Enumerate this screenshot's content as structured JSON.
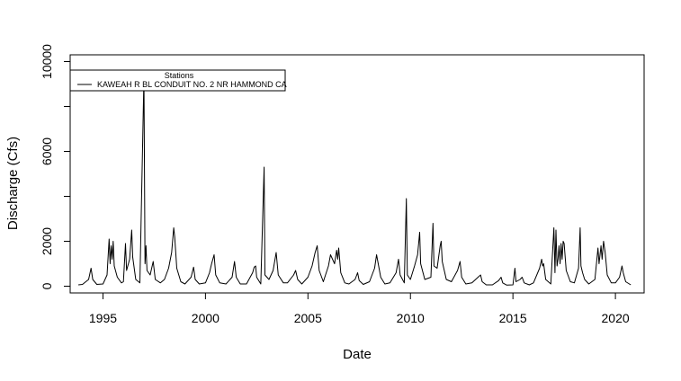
{
  "chart_data": {
    "type": "line",
    "title": "",
    "xlabel": "Date",
    "ylabel": "Discharge (Cfs)",
    "xlim": [
      1993.4,
      2021.4
    ],
    "ylim": [
      -300,
      10300
    ],
    "x_ticks": [
      1995,
      2000,
      2005,
      2010,
      2015,
      2020
    ],
    "x_tick_labels": [
      "1995",
      "2000",
      "2005",
      "2010",
      "2015",
      "2020"
    ],
    "y_ticks": [
      0,
      2000,
      6000,
      10000
    ],
    "y_tick_labels": [
      "0",
      "2000",
      "6000",
      "10000"
    ],
    "y_minor_ticks": [
      4000,
      8000
    ],
    "grid": false,
    "legend": {
      "title": "Stations",
      "position": "top-left",
      "entries": [
        "KAWEAH R BL CONDUIT NO. 2 NR HAMMOND CA"
      ]
    },
    "series": [
      {
        "name": "KAWEAH R BL CONDUIT NO. 2 NR HAMMOND CA",
        "color": "#000000",
        "points": [
          [
            1993.8,
            60
          ],
          [
            1994.0,
            80
          ],
          [
            1994.3,
            300
          ],
          [
            1994.42,
            800
          ],
          [
            1994.5,
            300
          ],
          [
            1994.7,
            80
          ],
          [
            1995.0,
            100
          ],
          [
            1995.2,
            500
          ],
          [
            1995.3,
            2100
          ],
          [
            1995.35,
            1000
          ],
          [
            1995.4,
            1800
          ],
          [
            1995.45,
            1200
          ],
          [
            1995.5,
            2000
          ],
          [
            1995.55,
            900
          ],
          [
            1995.7,
            400
          ],
          [
            1995.9,
            150
          ],
          [
            1996.0,
            200
          ],
          [
            1996.1,
            1900
          ],
          [
            1996.15,
            700
          ],
          [
            1996.3,
            1200
          ],
          [
            1996.4,
            2500
          ],
          [
            1996.45,
            1300
          ],
          [
            1996.6,
            300
          ],
          [
            1996.8,
            150
          ],
          [
            1997.0,
            9300
          ],
          [
            1997.05,
            1000
          ],
          [
            1997.1,
            1800
          ],
          [
            1997.15,
            700
          ],
          [
            1997.3,
            500
          ],
          [
            1997.45,
            1100
          ],
          [
            1997.55,
            300
          ],
          [
            1997.8,
            150
          ],
          [
            1998.0,
            300
          ],
          [
            1998.2,
            800
          ],
          [
            1998.35,
            1500
          ],
          [
            1998.45,
            2600
          ],
          [
            1998.5,
            2200
          ],
          [
            1998.6,
            800
          ],
          [
            1998.8,
            200
          ],
          [
            1999.0,
            100
          ],
          [
            1999.3,
            400
          ],
          [
            1999.42,
            850
          ],
          [
            1999.5,
            300
          ],
          [
            1999.7,
            100
          ],
          [
            2000.0,
            150
          ],
          [
            2000.2,
            600
          ],
          [
            2000.3,
            1000
          ],
          [
            2000.42,
            1400
          ],
          [
            2000.5,
            500
          ],
          [
            2000.7,
            150
          ],
          [
            2001.0,
            100
          ],
          [
            2001.3,
            400
          ],
          [
            2001.42,
            1100
          ],
          [
            2001.5,
            400
          ],
          [
            2001.7,
            100
          ],
          [
            2002.0,
            100
          ],
          [
            2002.3,
            600
          ],
          [
            2002.38,
            850
          ],
          [
            2002.45,
            900
          ],
          [
            2002.5,
            400
          ],
          [
            2002.7,
            100
          ],
          [
            2002.86,
            5300
          ],
          [
            2002.9,
            500
          ],
          [
            2003.1,
            300
          ],
          [
            2003.3,
            700
          ],
          [
            2003.45,
            1500
          ],
          [
            2003.55,
            500
          ],
          [
            2003.8,
            150
          ],
          [
            2004.0,
            150
          ],
          [
            2004.3,
            500
          ],
          [
            2004.4,
            700
          ],
          [
            2004.5,
            300
          ],
          [
            2004.7,
            100
          ],
          [
            2005.0,
            400
          ],
          [
            2005.2,
            900
          ],
          [
            2005.35,
            1500
          ],
          [
            2005.45,
            1800
          ],
          [
            2005.55,
            700
          ],
          [
            2005.75,
            200
          ],
          [
            2006.0,
            900
          ],
          [
            2006.1,
            1400
          ],
          [
            2006.3,
            1000
          ],
          [
            2006.4,
            1600
          ],
          [
            2006.45,
            1200
          ],
          [
            2006.5,
            1700
          ],
          [
            2006.6,
            600
          ],
          [
            2006.8,
            150
          ],
          [
            2007.0,
            100
          ],
          [
            2007.3,
            300
          ],
          [
            2007.42,
            600
          ],
          [
            2007.5,
            250
          ],
          [
            2007.7,
            80
          ],
          [
            2008.0,
            200
          ],
          [
            2008.25,
            800
          ],
          [
            2008.35,
            1400
          ],
          [
            2008.45,
            900
          ],
          [
            2008.55,
            400
          ],
          [
            2008.75,
            100
          ],
          [
            2009.0,
            150
          ],
          [
            2009.3,
            600
          ],
          [
            2009.42,
            1200
          ],
          [
            2009.5,
            500
          ],
          [
            2009.7,
            150
          ],
          [
            2009.8,
            3900
          ],
          [
            2009.85,
            500
          ],
          [
            2010.0,
            300
          ],
          [
            2010.2,
            900
          ],
          [
            2010.35,
            1400
          ],
          [
            2010.45,
            2400
          ],
          [
            2010.5,
            1000
          ],
          [
            2010.7,
            300
          ],
          [
            2011.0,
            400
          ],
          [
            2011.1,
            2800
          ],
          [
            2011.15,
            900
          ],
          [
            2011.3,
            800
          ],
          [
            2011.45,
            1800
          ],
          [
            2011.5,
            2000
          ],
          [
            2011.55,
            1100
          ],
          [
            2011.75,
            300
          ],
          [
            2012.0,
            200
          ],
          [
            2012.3,
            700
          ],
          [
            2012.42,
            1100
          ],
          [
            2012.5,
            400
          ],
          [
            2012.7,
            100
          ],
          [
            2013.0,
            150
          ],
          [
            2013.3,
            400
          ],
          [
            2013.42,
            500
          ],
          [
            2013.5,
            200
          ],
          [
            2013.7,
            60
          ],
          [
            2014.0,
            60
          ],
          [
            2014.3,
            250
          ],
          [
            2014.42,
            400
          ],
          [
            2014.5,
            150
          ],
          [
            2014.7,
            50
          ],
          [
            2015.0,
            60
          ],
          [
            2015.1,
            800
          ],
          [
            2015.15,
            200
          ],
          [
            2015.35,
            300
          ],
          [
            2015.45,
            400
          ],
          [
            2015.55,
            150
          ],
          [
            2015.8,
            60
          ],
          [
            2016.0,
            150
          ],
          [
            2016.3,
            800
          ],
          [
            2016.4,
            1200
          ],
          [
            2016.45,
            900
          ],
          [
            2016.5,
            1000
          ],
          [
            2016.6,
            300
          ],
          [
            2016.85,
            100
          ],
          [
            2017.0,
            2600
          ],
          [
            2017.05,
            600
          ],
          [
            2017.1,
            2500
          ],
          [
            2017.15,
            900
          ],
          [
            2017.2,
            1200
          ],
          [
            2017.25,
            1800
          ],
          [
            2017.3,
            1000
          ],
          [
            2017.35,
            1900
          ],
          [
            2017.4,
            1200
          ],
          [
            2017.45,
            2000
          ],
          [
            2017.5,
            1900
          ],
          [
            2017.6,
            700
          ],
          [
            2017.8,
            200
          ],
          [
            2018.0,
            150
          ],
          [
            2018.2,
            800
          ],
          [
            2018.28,
            2600
          ],
          [
            2018.32,
            900
          ],
          [
            2018.4,
            600
          ],
          [
            2018.5,
            300
          ],
          [
            2018.7,
            100
          ],
          [
            2019.0,
            300
          ],
          [
            2019.15,
            1700
          ],
          [
            2019.2,
            1000
          ],
          [
            2019.3,
            1800
          ],
          [
            2019.35,
            1200
          ],
          [
            2019.42,
            2000
          ],
          [
            2019.5,
            1500
          ],
          [
            2019.6,
            500
          ],
          [
            2019.8,
            150
          ],
          [
            2020.0,
            150
          ],
          [
            2020.2,
            400
          ],
          [
            2020.32,
            900
          ],
          [
            2020.38,
            600
          ],
          [
            2020.5,
            200
          ],
          [
            2020.75,
            60
          ]
        ]
      }
    ]
  }
}
